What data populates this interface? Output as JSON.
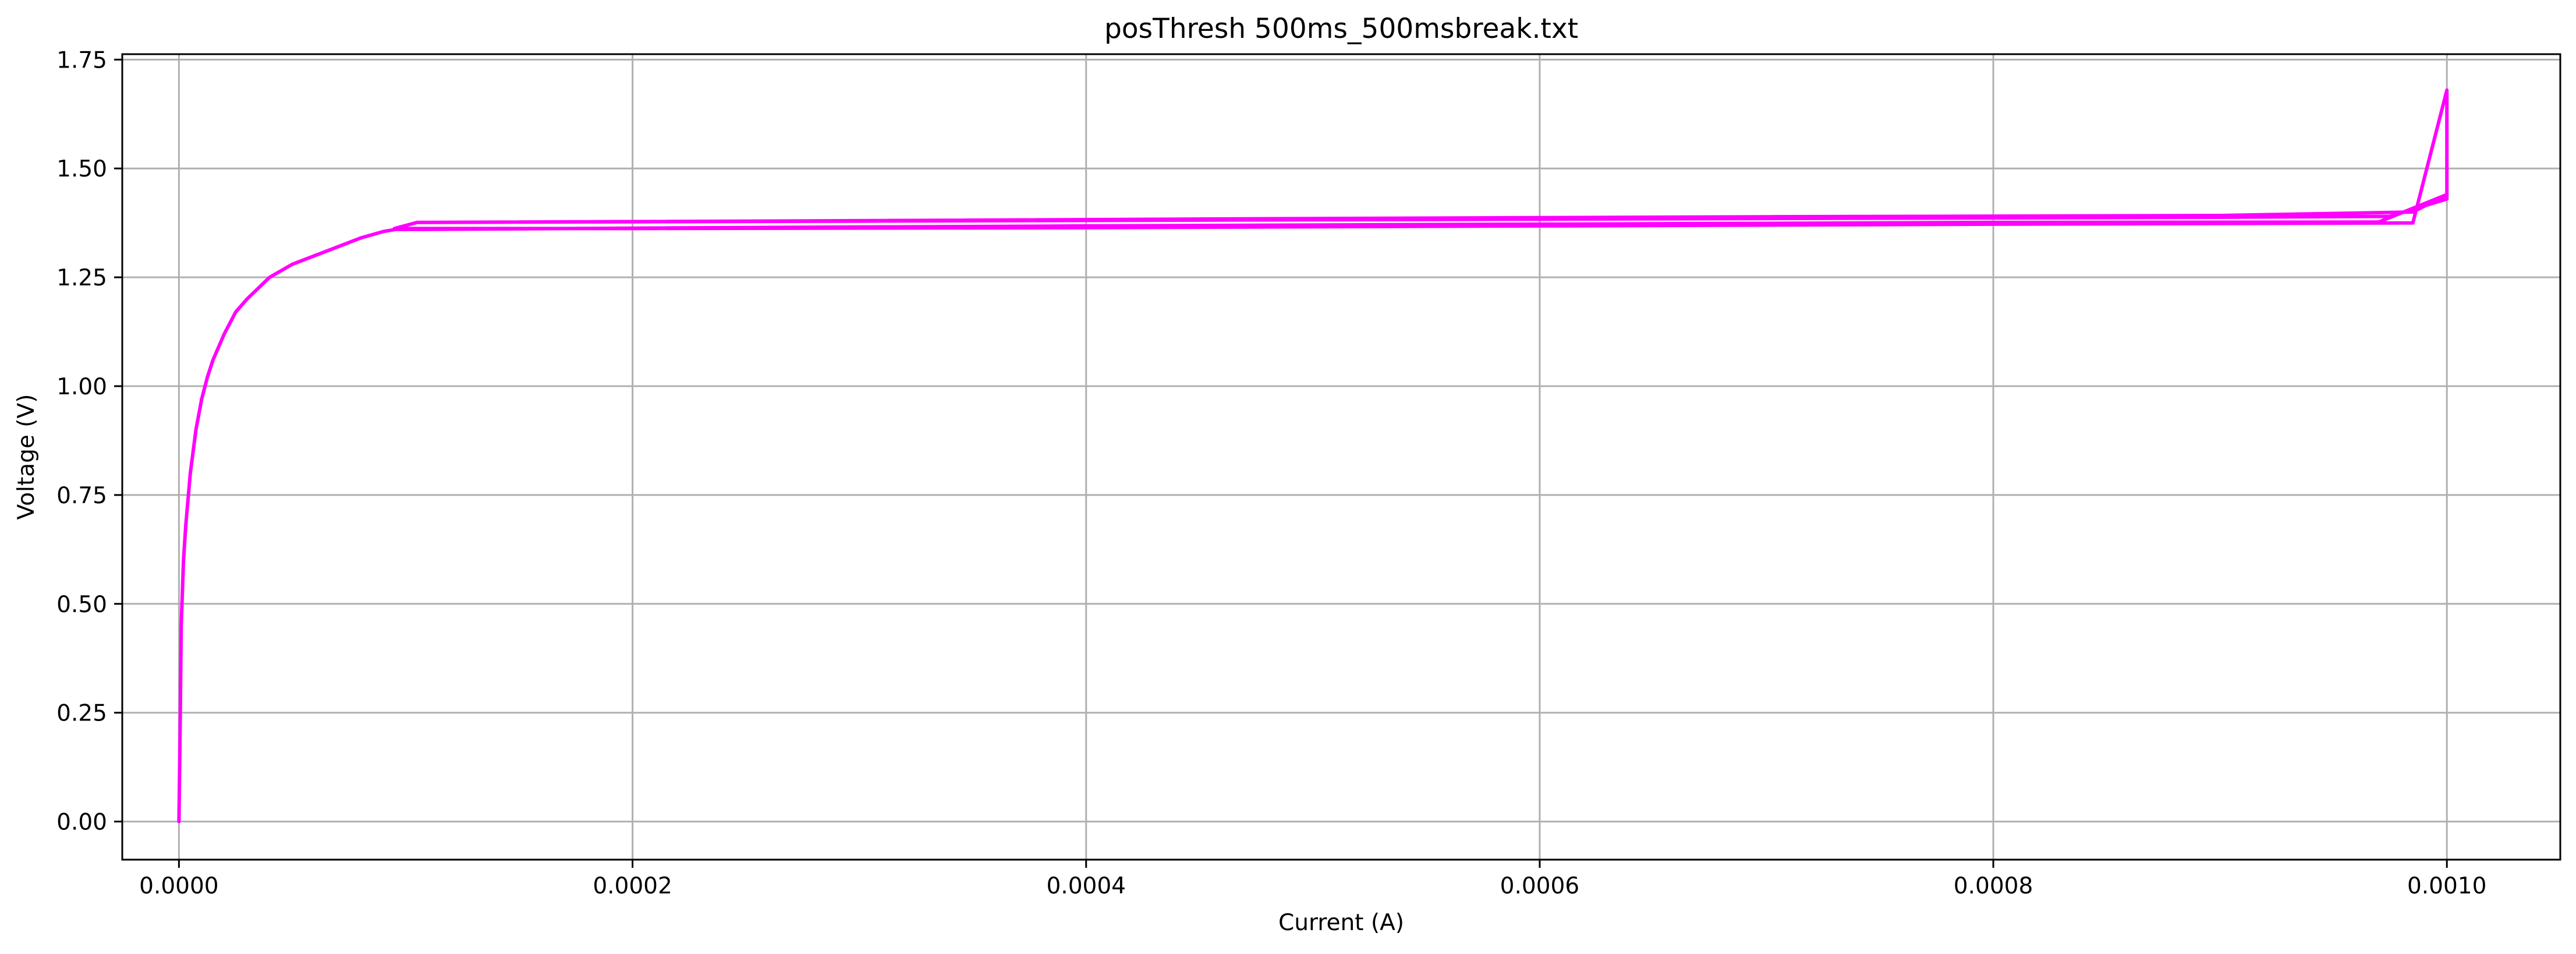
{
  "chart_data": {
    "type": "line",
    "title": "posThresh 500ms_500msbreak.txt",
    "xlabel": "Current (A)",
    "ylabel": "Voltage (V)",
    "xlim": [
      -2.5e-05,
      0.00105
    ],
    "ylim": [
      -0.0875,
      1.7625
    ],
    "xticks": [
      0.0,
      0.0002,
      0.0004,
      0.0006,
      0.0008,
      0.001
    ],
    "xtick_labels": [
      "0.0000",
      "0.0002",
      "0.0004",
      "0.0006",
      "0.0008",
      "0.0010"
    ],
    "yticks": [
      0.0,
      0.25,
      0.5,
      0.75,
      1.0,
      1.25,
      1.5,
      1.75
    ],
    "ytick_labels": [
      "0.00",
      "0.25",
      "0.50",
      "0.75",
      "1.00",
      "1.25",
      "1.50",
      "1.75"
    ],
    "grid": true,
    "color": "#ff00ff",
    "series": [
      {
        "x": [
          0.0,
          5e-07,
          1e-06,
          2e-06,
          3e-06,
          5e-06,
          7.5e-06,
          1e-05,
          1.25e-05,
          1.5e-05,
          2e-05,
          2.5e-05,
          3e-05,
          4e-05,
          5e-05,
          6e-05,
          7e-05,
          8e-05,
          9e-05,
          9.55e-05,
          0.000105,
          0.0002,
          0.0004,
          0.0006,
          0.0008,
          0.00097,
          0.001,
          0.001,
          0.000985,
          0.0008,
          0.0006,
          0.0004,
          0.0002,
          9.5e-05,
          0.000105,
          0.0003,
          0.0005,
          0.0007,
          0.0009,
          0.000975,
          0.001,
          0.001,
          0.000985,
          0.0009,
          0.0007,
          0.0005,
          0.0003,
          0.000105
        ],
        "y": [
          0.0,
          0.2,
          0.45,
          0.6,
          0.68,
          0.8,
          0.9,
          0.97,
          1.02,
          1.06,
          1.12,
          1.17,
          1.2,
          1.25,
          1.28,
          1.3,
          1.32,
          1.34,
          1.355,
          1.36,
          1.36,
          1.363,
          1.368,
          1.372,
          1.376,
          1.377,
          1.44,
          1.68,
          1.375,
          1.372,
          1.368,
          1.364,
          1.362,
          1.362,
          1.376,
          1.379,
          1.382,
          1.385,
          1.388,
          1.39,
          1.43,
          1.44,
          1.4,
          1.392,
          1.389,
          1.385,
          1.38,
          1.376
        ]
      }
    ]
  }
}
